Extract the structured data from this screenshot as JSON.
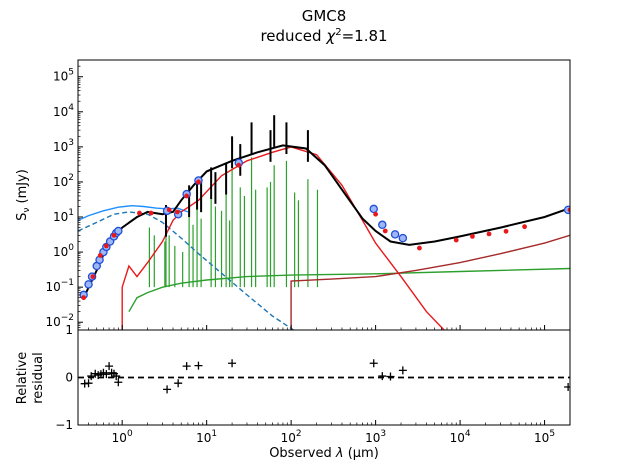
{
  "figure": {
    "title": "GMC8",
    "subtitle_prefix": "reduced ",
    "subtitle_chi": "χ",
    "subtitle_exp": "2",
    "subtitle_value": "=1.81"
  },
  "chart_data": [
    {
      "type": "line",
      "panel": "sed",
      "ylabel_main": "S",
      "ylabel_sub": "ν",
      "ylabel_unit": " (mJy)",
      "xscale": "log",
      "yscale": "log",
      "xlim": [
        0.3,
        200000
      ],
      "ylim": [
        0.006,
        300000
      ],
      "y_ticks": [
        {
          "label_base": "10",
          "label_exp": "−2",
          "value": 0.01
        },
        {
          "label_base": "10",
          "label_exp": "−1",
          "value": 0.1
        },
        {
          "label_base": "10",
          "label_exp": "0",
          "value": 1
        },
        {
          "label_base": "10",
          "label_exp": "1",
          "value": 10
        },
        {
          "label_base": "10",
          "label_exp": "2",
          "value": 100
        },
        {
          "label_base": "10",
          "label_exp": "3",
          "value": 1000
        },
        {
          "label_base": "10",
          "label_exp": "4",
          "value": 10000
        },
        {
          "label_base": "10",
          "label_exp": "5",
          "value": 100000
        }
      ],
      "series": [
        {
          "color": "#1f77b4",
          "style": "dashed",
          "points": [
            [
              0.3,
              4
            ],
            [
              0.5,
              7
            ],
            [
              0.8,
              12
            ],
            [
              1.2,
              14
            ],
            [
              2,
              12
            ],
            [
              3,
              7
            ],
            [
              5,
              2.5
            ],
            [
              8,
              0.9
            ],
            [
              15,
              0.25
            ],
            [
              30,
              0.06
            ],
            [
              60,
              0.015
            ],
            [
              120,
              0.005
            ]
          ]
        },
        {
          "color": "#1f8fff",
          "style": "solid",
          "points": [
            [
              0.3,
              8
            ],
            [
              0.4,
              11
            ],
            [
              0.6,
              15
            ],
            [
              0.9,
              19
            ],
            [
              1.3,
              21
            ],
            [
              1.8,
              20
            ],
            [
              2.5,
              18
            ],
            [
              3.5,
              17
            ],
            [
              4.5,
              18
            ],
            [
              6,
              14
            ]
          ]
        },
        {
          "color": "#2ca02c",
          "style": "solid",
          "points": [
            [
              1.2,
              0.02
            ],
            [
              1.5,
              0.05
            ],
            [
              2,
              0.07
            ],
            [
              3,
              0.1
            ],
            [
              5,
              0.13
            ],
            [
              10,
              0.16
            ],
            [
              30,
              0.2
            ],
            [
              100,
              0.22
            ],
            [
              1000,
              0.24
            ],
            [
              10000,
              0.28
            ],
            [
              200000,
              0.34
            ]
          ]
        },
        {
          "color": "#a52a2a",
          "style": "solid",
          "points": [
            [
              100,
              0.001
            ],
            [
              100,
              0.15
            ],
            [
              300,
              0.17
            ],
            [
              1000,
              0.2
            ],
            [
              3000,
              0.3
            ],
            [
              10000,
              0.5
            ],
            [
              30000,
              0.9
            ],
            [
              100000,
              1.8
            ],
            [
              200000,
              3
            ]
          ]
        },
        {
          "color": "#e8191c",
          "style": "solid",
          "points": [
            [
              1,
              0.001
            ],
            [
              1,
              0.1
            ],
            [
              1.2,
              0.4
            ],
            [
              1.5,
              0.2
            ],
            [
              2,
              0.5
            ],
            [
              3,
              2
            ],
            [
              4,
              8
            ],
            [
              5,
              14
            ],
            [
              8,
              30
            ],
            [
              15,
              150
            ],
            [
              30,
              400
            ],
            [
              60,
              700
            ],
            [
              100,
              1000
            ],
            [
              200,
              600
            ],
            [
              400,
              80
            ],
            [
              700,
              8
            ],
            [
              1000,
              1.8
            ],
            [
              2000,
              0.2
            ],
            [
              4000,
              0.02
            ],
            [
              10000,
              0.002
            ]
          ]
        },
        {
          "color": "#000000",
          "style": "solid",
          "width": 2,
          "points": [
            [
              0.35,
              0.05
            ],
            [
              0.5,
              0.3
            ],
            [
              0.7,
              2
            ],
            [
              1,
              5
            ],
            [
              1.5,
              10
            ],
            [
              2,
              14
            ],
            [
              3,
              12
            ],
            [
              4,
              14
            ],
            [
              5,
              30
            ],
            [
              7,
              80
            ],
            [
              10,
              200
            ],
            [
              20,
              400
            ],
            [
              40,
              700
            ],
            [
              80,
              1100
            ],
            [
              150,
              900
            ],
            [
              250,
              300
            ],
            [
              400,
              60
            ],
            [
              700,
              9
            ],
            [
              1000,
              4
            ],
            [
              1500,
              2
            ],
            [
              2500,
              1.6
            ],
            [
              5000,
              2
            ],
            [
              10000,
              2.8
            ],
            [
              30000,
              5
            ],
            [
              100000,
              10
            ],
            [
              200000,
              18
            ]
          ]
        }
      ],
      "sticks": {
        "color": "#2ca02c",
        "lines": [
          [
            2.1,
            5
          ],
          [
            2.4,
            3
          ],
          [
            3.2,
            2
          ],
          [
            3.3,
            8
          ],
          [
            3.6,
            3
          ],
          [
            4.2,
            1.5
          ],
          [
            5.2,
            1
          ],
          [
            6.2,
            30
          ],
          [
            6.9,
            6
          ],
          [
            7.7,
            18
          ],
          [
            8.6,
            9
          ],
          [
            11.3,
            40
          ],
          [
            12.7,
            20
          ],
          [
            15,
            15
          ],
          [
            17,
            100
          ],
          [
            18.7,
            8
          ],
          [
            20,
            300
          ],
          [
            25,
            70
          ],
          [
            28,
            40
          ],
          [
            34,
            500
          ],
          [
            38,
            60
          ],
          [
            52,
            70
          ],
          [
            57,
            100
          ],
          [
            63,
            300
          ],
          [
            88,
            400
          ],
          [
            110,
            50
          ],
          [
            122,
            30
          ],
          [
            158,
            120
          ],
          [
            205,
            60
          ]
        ],
        "base": 0.1
      },
      "spikes": {
        "color": "#000000",
        "lines": [
          [
            3.3,
            22
          ],
          [
            6.2,
            80
          ],
          [
            7.7,
            130
          ],
          [
            8.6,
            110
          ],
          [
            11.3,
            260
          ],
          [
            12.7,
            190
          ],
          [
            17,
            350
          ],
          [
            20,
            2000
          ],
          [
            25,
            1200
          ],
          [
            34,
            5000
          ],
          [
            57,
            3000
          ],
          [
            63,
            8000
          ],
          [
            88,
            5000
          ],
          [
            158,
            3000
          ]
        ]
      },
      "model_points": {
        "color": "#e8191c",
        "points": [
          [
            0.35,
            0.05
          ],
          [
            0.45,
            0.2
          ],
          [
            0.55,
            0.8
          ],
          [
            0.65,
            1.5
          ],
          [
            0.8,
            3
          ],
          [
            1.6,
            13
          ],
          [
            2.2,
            13
          ],
          [
            3.6,
            16
          ],
          [
            4.5,
            14
          ],
          [
            5.8,
            40
          ],
          [
            8,
            100
          ],
          [
            24,
            300
          ],
          [
            1000,
            12
          ],
          [
            1300,
            4
          ],
          [
            3300,
            1.3
          ],
          [
            9000,
            2.2
          ],
          [
            14000,
            2.8
          ],
          [
            22000,
            3.3
          ],
          [
            35000,
            3.9
          ],
          [
            58000,
            5.3
          ],
          [
            200000,
            16
          ]
        ]
      },
      "observed_points": {
        "color": "#1f4fd8",
        "points": [
          [
            0.35,
            0.06
          ],
          [
            0.4,
            0.12
          ],
          [
            0.44,
            0.2
          ],
          [
            0.5,
            0.4
          ],
          [
            0.54,
            0.6
          ],
          [
            0.6,
            1
          ],
          [
            0.65,
            1.4
          ],
          [
            0.72,
            2
          ],
          [
            0.8,
            2.8
          ],
          [
            0.85,
            3.5
          ],
          [
            0.9,
            4
          ],
          [
            3.4,
            15
          ],
          [
            4.6,
            12
          ],
          [
            5.8,
            45
          ],
          [
            8,
            110
          ],
          [
            24,
            350
          ],
          [
            950,
            17
          ],
          [
            1200,
            6
          ],
          [
            1700,
            3.2
          ],
          [
            2100,
            2.5
          ],
          [
            190000,
            16
          ]
        ]
      }
    },
    {
      "type": "scatter",
      "panel": "residual",
      "ylabel_line1": "Relative",
      "ylabel_line2": "residual",
      "xlabel_prefix": "Observed ",
      "xlabel_lambda": "λ",
      "xlabel_unit": " (μm)",
      "ylim": [
        -1,
        1
      ],
      "y_ticks": [
        {
          "label": "1",
          "value": 1
        },
        {
          "label": "0",
          "value": 0
        },
        {
          "label": "−1",
          "value": -1
        }
      ],
      "x_ticks": [
        {
          "label_base": "10",
          "label_exp": "0",
          "value": 1
        },
        {
          "label_base": "10",
          "label_exp": "1",
          "value": 10
        },
        {
          "label_base": "10",
          "label_exp": "2",
          "value": 100
        },
        {
          "label_base": "10",
          "label_exp": "3",
          "value": 1000
        },
        {
          "label_base": "10",
          "label_exp": "4",
          "value": 10000
        },
        {
          "label_base": "10",
          "label_exp": "5",
          "value": 100000
        }
      ],
      "zero_line": 0,
      "points": [
        [
          0.36,
          -0.13
        ],
        [
          0.4,
          -0.12
        ],
        [
          0.43,
          0.03
        ],
        [
          0.48,
          0.08
        ],
        [
          0.52,
          0.05
        ],
        [
          0.56,
          0.07
        ],
        [
          0.6,
          0.1
        ],
        [
          0.65,
          0.07
        ],
        [
          0.7,
          0.24
        ],
        [
          0.75,
          0.1
        ],
        [
          0.8,
          0.08
        ],
        [
          0.85,
          0.03
        ],
        [
          0.9,
          -0.1
        ],
        [
          3.4,
          -0.25
        ],
        [
          4.6,
          -0.12
        ],
        [
          5.8,
          0.24
        ],
        [
          8,
          0.25
        ],
        [
          20,
          0.3
        ],
        [
          950,
          0.3
        ],
        [
          1200,
          0.03
        ],
        [
          1500,
          0.02
        ],
        [
          2100,
          0.15
        ],
        [
          190000,
          -0.2
        ]
      ]
    }
  ]
}
